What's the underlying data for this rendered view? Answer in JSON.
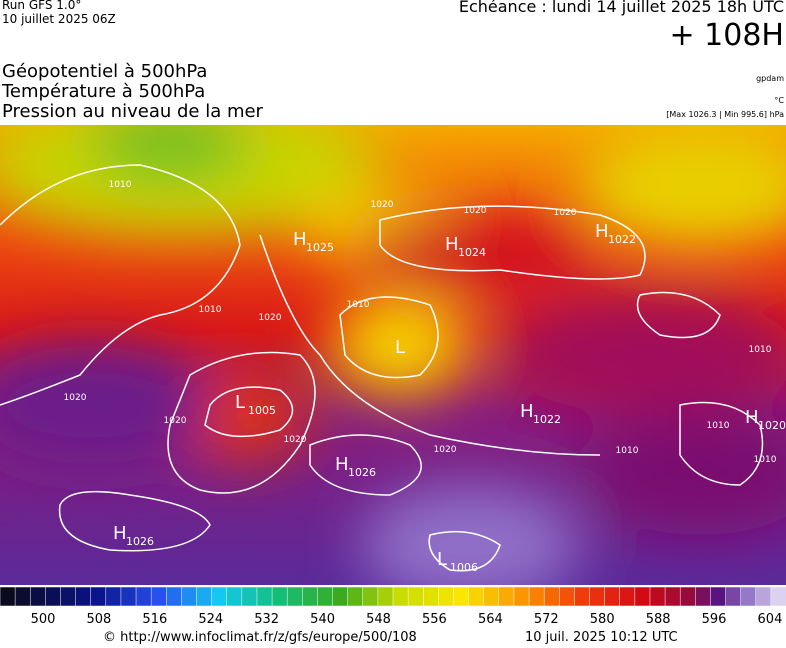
{
  "header": {
    "run": "Run GFS 1.0°",
    "run_date": "10 juillet 2025 06Z",
    "echeance": "Echéance : lundi 14 juillet 2025 18h UTC",
    "lead_time": "+ 108H",
    "titles": [
      "Géopotentiel à 500hPa",
      "Température à 500hPa",
      "Pression au niveau de la mer"
    ],
    "units": [
      "gpdam",
      "°C",
      "[Max 1026.3 | Min 995.6] hPa"
    ]
  },
  "map": {
    "centers": [
      {
        "type": "H",
        "value": "1025"
      },
      {
        "type": "H",
        "value": "1024"
      },
      {
        "type": "H",
        "value": "1022"
      },
      {
        "type": "L",
        "value": "1005"
      },
      {
        "type": "H",
        "value": "1026"
      },
      {
        "type": "H",
        "value": "1022"
      },
      {
        "type": "H",
        "value": "1020"
      },
      {
        "type": "H",
        "value": "1026"
      },
      {
        "type": "L",
        "value": "1006"
      },
      {
        "type": "L",
        "value": null
      }
    ],
    "isobar_labels": [
      "1020",
      "1020",
      "1010",
      "1020",
      "1010",
      "1020",
      "1020",
      "1020",
      "1020",
      "1010",
      "1010",
      "1010",
      "1010",
      "1020",
      "1010"
    ]
  },
  "colorbar": {
    "labels": [
      500,
      508,
      516,
      524,
      532,
      540,
      548,
      556,
      564,
      572,
      580,
      588,
      596,
      604
    ]
  },
  "footer": {
    "url": "© http://www.infoclimat.fr/z/gfs/europe/500/108",
    "timestamp": "10 juil. 2025 10:12 UTC"
  }
}
